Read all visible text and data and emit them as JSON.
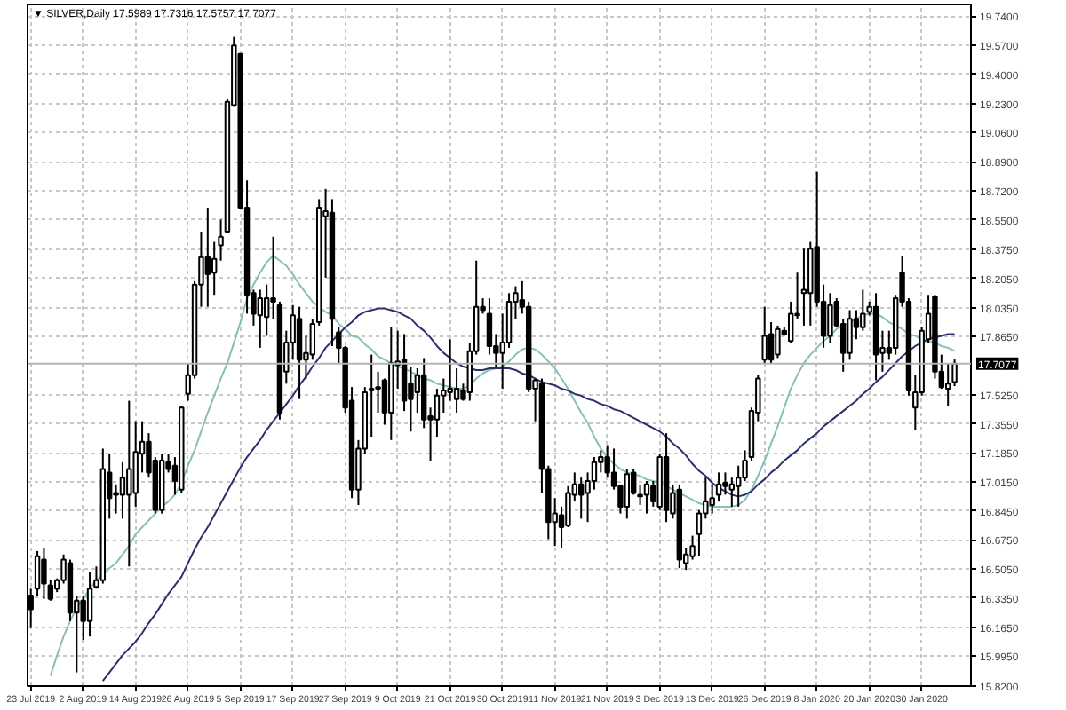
{
  "chart_data": {
    "type": "candlestick",
    "title": "▼ SILVER,Daily 17.5989 17.7316 17.5757 17.7077",
    "categories": [
      "23 Jul 2019",
      null,
      null,
      null,
      null,
      null,
      null,
      null,
      "2 Aug 2019",
      null,
      null,
      null,
      null,
      null,
      null,
      null,
      "14 Aug 2019",
      null,
      null,
      null,
      null,
      null,
      null,
      null,
      "26 Aug 2019",
      null,
      null,
      null,
      null,
      null,
      null,
      null,
      "5 Sep 2019",
      null,
      null,
      null,
      null,
      null,
      null,
      null,
      "17 Sep 2019",
      null,
      null,
      null,
      null,
      null,
      null,
      null,
      "27 Sep 2019",
      null,
      null,
      null,
      null,
      null,
      null,
      null,
      "9 Oct 2019",
      null,
      null,
      null,
      null,
      null,
      null,
      null,
      "21 Oct 2019",
      null,
      null,
      null,
      null,
      null,
      null,
      null,
      "30 Oct 2019",
      null,
      null,
      null,
      null,
      null,
      null,
      null,
      "11 Nov 2019",
      null,
      null,
      null,
      null,
      null,
      null,
      null,
      "21 Nov 2019",
      null,
      null,
      null,
      null,
      null,
      null,
      null,
      "3 Dec 2019",
      null,
      null,
      null,
      null,
      null,
      null,
      null,
      "13 Dec 2019",
      null,
      null,
      null,
      null,
      null,
      null,
      null,
      "26 Dec 2019",
      null,
      null,
      null,
      null,
      null,
      null,
      null,
      "8 Jan 2020",
      null,
      null,
      null,
      null,
      null,
      null,
      null,
      "20 Jan 2020",
      null,
      null,
      null,
      null,
      null,
      null,
      null,
      "30 Jan 2020",
      null,
      null,
      null,
      null,
      null
    ],
    "ohlc": [
      [
        16.35,
        16.39,
        16.16,
        16.27
      ],
      [
        16.39,
        16.61,
        16.35,
        16.58
      ],
      [
        16.56,
        16.63,
        16.33,
        16.42
      ],
      [
        16.41,
        16.44,
        16.32,
        16.33
      ],
      [
        16.39,
        16.45,
        16.37,
        16.44
      ],
      [
        16.44,
        16.59,
        16.42,
        16.56
      ],
      [
        16.54,
        16.56,
        16.2,
        16.25
      ],
      [
        16.25,
        16.35,
        15.9,
        16.32
      ],
      [
        16.32,
        16.35,
        16.09,
        16.2
      ],
      [
        16.2,
        16.49,
        16.11,
        16.39
      ],
      [
        16.4,
        16.52,
        16.39,
        16.44
      ],
      [
        16.44,
        17.21,
        16.42,
        17.09
      ],
      [
        17.07,
        17.18,
        16.8,
        16.92
      ],
      [
        16.95,
        17.0,
        16.83,
        16.94
      ],
      [
        16.94,
        17.13,
        16.8,
        17.04
      ],
      [
        16.94,
        17.49,
        16.52,
        17.09
      ],
      [
        16.95,
        17.37,
        16.87,
        17.19
      ],
      [
        17.18,
        17.37,
        17.07,
        17.25
      ],
      [
        17.25,
        17.3,
        17.04,
        17.07
      ],
      [
        17.14,
        17.16,
        16.83,
        16.85
      ],
      [
        16.85,
        17.18,
        16.83,
        17.14
      ],
      [
        17.13,
        17.18,
        17.07,
        17.09
      ],
      [
        17.11,
        17.16,
        16.94,
        17.02
      ],
      [
        16.97,
        17.46,
        16.95,
        17.45
      ],
      [
        17.53,
        17.71,
        17.49,
        17.64
      ],
      [
        17.64,
        18.19,
        17.62,
        18.17
      ],
      [
        18.17,
        18.48,
        18.04,
        18.33
      ],
      [
        18.33,
        18.62,
        18.04,
        18.23
      ],
      [
        18.24,
        18.42,
        18.11,
        18.32
      ],
      [
        18.4,
        18.55,
        18.31,
        18.45
      ],
      [
        18.48,
        19.26,
        18.47,
        19.24
      ],
      [
        19.22,
        19.62,
        19.21,
        19.57
      ],
      [
        19.52,
        19.52,
        18.62,
        18.62
      ],
      [
        18.62,
        18.78,
        18.0,
        18.11
      ],
      [
        18.12,
        18.14,
        17.93,
        18.0
      ],
      [
        17.99,
        18.14,
        17.8,
        18.09
      ],
      [
        17.98,
        18.17,
        17.87,
        18.09
      ],
      [
        18.09,
        18.45,
        17.97,
        18.07
      ],
      [
        18.05,
        18.07,
        17.38,
        17.42
      ],
      [
        17.66,
        17.9,
        17.59,
        17.83
      ],
      [
        17.83,
        18.05,
        17.73,
        17.99
      ],
      [
        17.97,
        18.04,
        17.5,
        17.73
      ],
      [
        17.73,
        17.87,
        17.62,
        17.77
      ],
      [
        17.76,
        17.97,
        17.73,
        17.94
      ],
      [
        17.95,
        18.67,
        17.93,
        18.62
      ],
      [
        18.57,
        18.73,
        18.21,
        18.6
      ],
      [
        18.59,
        18.67,
        17.81,
        17.97
      ],
      [
        17.89,
        17.92,
        17.71,
        17.8
      ],
      [
        17.8,
        17.81,
        17.42,
        17.45
      ],
      [
        17.49,
        17.57,
        16.92,
        16.97
      ],
      [
        16.97,
        17.26,
        16.88,
        17.21
      ],
      [
        17.21,
        17.57,
        17.18,
        17.54
      ],
      [
        17.55,
        17.76,
        17.28,
        17.56
      ],
      [
        17.56,
        17.66,
        17.42,
        17.57
      ],
      [
        17.61,
        17.62,
        17.35,
        17.42
      ],
      [
        17.42,
        17.92,
        17.26,
        17.71
      ],
      [
        17.7,
        17.9,
        17.56,
        17.72
      ],
      [
        17.73,
        17.88,
        17.43,
        17.49
      ],
      [
        17.59,
        17.69,
        17.31,
        17.5
      ],
      [
        17.54,
        17.68,
        17.42,
        17.64
      ],
      [
        17.64,
        17.74,
        17.33,
        17.38
      ],
      [
        17.4,
        17.45,
        17.14,
        17.38
      ],
      [
        17.38,
        17.56,
        17.28,
        17.52
      ],
      [
        17.52,
        17.62,
        17.42,
        17.55
      ],
      [
        17.54,
        17.85,
        17.49,
        17.56
      ],
      [
        17.5,
        17.68,
        17.42,
        17.56
      ],
      [
        17.55,
        17.59,
        17.49,
        17.5
      ],
      [
        17.54,
        17.83,
        17.49,
        17.78
      ],
      [
        17.78,
        18.31,
        17.76,
        18.04
      ],
      [
        18.04,
        18.09,
        18.0,
        18.02
      ],
      [
        18.0,
        18.09,
        17.76,
        17.81
      ],
      [
        17.81,
        17.88,
        17.69,
        17.77
      ],
      [
        17.77,
        18.0,
        17.56,
        17.83
      ],
      [
        17.83,
        18.12,
        17.8,
        18.07
      ],
      [
        18.07,
        18.16,
        17.97,
        18.12
      ],
      [
        18.08,
        18.19,
        18.0,
        18.04
      ],
      [
        18.04,
        18.07,
        17.54,
        17.56
      ],
      [
        17.56,
        17.62,
        17.37,
        17.61
      ],
      [
        17.59,
        17.62,
        16.95,
        17.09
      ],
      [
        17.09,
        17.11,
        16.68,
        16.78
      ],
      [
        16.78,
        16.92,
        16.64,
        16.83
      ],
      [
        16.82,
        16.87,
        16.63,
        16.75
      ],
      [
        16.76,
        16.99,
        16.75,
        16.95
      ],
      [
        16.94,
        17.07,
        16.9,
        17.0
      ],
      [
        17.0,
        17.04,
        16.8,
        16.94
      ],
      [
        16.95,
        17.07,
        16.78,
        17.02
      ],
      [
        17.02,
        17.16,
        16.97,
        17.13
      ],
      [
        17.13,
        17.2,
        17.07,
        17.16
      ],
      [
        17.16,
        17.23,
        17.04,
        17.07
      ],
      [
        17.07,
        17.21,
        16.97,
        16.99
      ],
      [
        16.99,
        17.0,
        16.83,
        16.87
      ],
      [
        16.87,
        17.09,
        16.8,
        17.06
      ],
      [
        17.07,
        17.09,
        16.94,
        16.95
      ],
      [
        16.94,
        17.0,
        16.88,
        16.93
      ],
      [
        16.94,
        17.02,
        16.83,
        17.0
      ],
      [
        16.99,
        17.02,
        16.87,
        16.9
      ],
      [
        16.87,
        17.18,
        16.85,
        17.16
      ],
      [
        17.16,
        17.3,
        16.78,
        16.85
      ],
      [
        16.83,
        17.0,
        16.8,
        16.95
      ],
      [
        16.97,
        17.0,
        16.51,
        16.56
      ],
      [
        16.54,
        16.63,
        16.5,
        16.59
      ],
      [
        16.58,
        16.7,
        16.56,
        16.64
      ],
      [
        16.71,
        16.85,
        16.58,
        16.83
      ],
      [
        16.83,
        17.04,
        16.8,
        16.9
      ],
      [
        16.88,
        17.0,
        16.83,
        16.92
      ],
      [
        16.94,
        17.07,
        16.9,
        17.0
      ],
      [
        17.01,
        17.07,
        16.94,
        16.99
      ],
      [
        16.97,
        17.04,
        16.87,
        17.0
      ],
      [
        16.99,
        17.11,
        16.87,
        17.04
      ],
      [
        17.04,
        17.2,
        17.02,
        17.14
      ],
      [
        17.16,
        17.45,
        17.14,
        17.43
      ],
      [
        17.42,
        17.64,
        17.37,
        17.62
      ],
      [
        17.73,
        18.04,
        17.71,
        17.87
      ],
      [
        17.88,
        17.95,
        17.71,
        17.73
      ],
      [
        17.76,
        17.93,
        17.74,
        17.91
      ],
      [
        17.9,
        17.92,
        17.87,
        17.88
      ],
      [
        17.84,
        18.07,
        17.83,
        18.0
      ],
      [
        17.99,
        18.24,
        17.97,
        18.0
      ],
      [
        18.12,
        18.38,
        17.93,
        18.14
      ],
      [
        18.12,
        18.42,
        17.93,
        18.38
      ],
      [
        18.39,
        18.83,
        18.04,
        18.07
      ],
      [
        18.07,
        18.17,
        17.8,
        17.87
      ],
      [
        17.87,
        18.12,
        17.83,
        18.05
      ],
      [
        18.07,
        18.09,
        17.92,
        17.93
      ],
      [
        17.94,
        17.97,
        17.66,
        17.77
      ],
      [
        17.77,
        18.02,
        17.73,
        17.97
      ],
      [
        17.97,
        18.02,
        17.85,
        17.92
      ],
      [
        17.92,
        18.14,
        17.9,
        18.0
      ],
      [
        18.01,
        18.07,
        17.99,
        18.04
      ],
      [
        18.04,
        18.12,
        17.61,
        17.76
      ],
      [
        17.77,
        17.9,
        17.66,
        17.8
      ],
      [
        17.8,
        17.9,
        17.73,
        17.77
      ],
      [
        17.8,
        18.11,
        17.76,
        18.09
      ],
      [
        18.24,
        18.34,
        18.04,
        18.07
      ],
      [
        18.07,
        18.09,
        17.52,
        17.55
      ],
      [
        17.45,
        17.64,
        17.32,
        17.54
      ],
      [
        17.54,
        17.92,
        17.52,
        17.9
      ],
      [
        17.85,
        18.11,
        17.83,
        18.0
      ],
      [
        18.1,
        18.11,
        17.62,
        17.66
      ],
      [
        17.66,
        17.76,
        17.56,
        17.57
      ],
      [
        17.56,
        17.71,
        17.46,
        17.59
      ],
      [
        17.5989,
        17.7316,
        17.5757,
        17.7077
      ]
    ],
    "color": "#000000",
    "series": [
      {
        "type": "line",
        "color": "#86c0b4",
        "values": [
          null,
          null,
          null,
          15.88,
          16.0,
          16.11,
          16.2,
          16.28,
          16.33,
          16.39,
          16.44,
          16.47,
          16.51,
          16.54,
          16.59,
          16.64,
          16.71,
          16.75,
          16.79,
          16.83,
          16.87,
          16.9,
          16.94,
          17.01,
          17.11,
          17.2,
          17.31,
          17.42,
          17.52,
          17.62,
          17.71,
          17.83,
          17.95,
          18.09,
          18.17,
          18.24,
          18.3,
          18.34,
          18.31,
          18.28,
          18.23,
          18.17,
          18.12,
          18.07,
          18.04,
          18.01,
          17.99,
          17.94,
          17.91,
          17.87,
          17.86,
          17.82,
          17.79,
          17.75,
          17.73,
          17.71,
          17.69,
          17.68,
          17.66,
          17.64,
          17.62,
          17.61,
          17.59,
          17.58,
          17.57,
          17.56,
          17.56,
          17.58,
          17.62,
          17.65,
          17.67,
          17.68,
          17.69,
          17.72,
          17.76,
          17.79,
          17.8,
          17.79,
          17.76,
          17.72,
          17.68,
          17.62,
          17.56,
          17.49,
          17.42,
          17.36,
          17.28,
          17.21,
          17.16,
          17.12,
          17.09,
          17.07,
          17.06,
          17.05,
          17.03,
          17.02,
          17.01,
          16.99,
          16.97,
          16.95,
          16.93,
          16.91,
          16.89,
          16.88,
          16.87,
          16.87,
          16.87,
          16.87,
          16.88,
          16.91,
          16.97,
          17.05,
          17.14,
          17.24,
          17.34,
          17.45,
          17.56,
          17.64,
          17.71,
          17.76,
          17.8,
          17.84,
          17.87,
          17.91,
          17.93,
          17.95,
          17.97,
          17.99,
          18.0,
          18.0,
          17.98,
          17.95,
          17.93,
          17.91,
          17.88,
          17.87,
          17.85,
          17.84,
          17.83,
          17.81,
          17.8,
          17.78
        ]
      },
      {
        "type": "line",
        "color": "#2b2f6b",
        "values": [
          null,
          null,
          null,
          null,
          null,
          null,
          null,
          null,
          null,
          null,
          null,
          15.85,
          15.9,
          15.95,
          16.0,
          16.04,
          16.08,
          16.13,
          16.19,
          16.24,
          16.3,
          16.36,
          16.41,
          16.46,
          16.54,
          16.62,
          16.69,
          16.75,
          16.82,
          16.89,
          16.96,
          17.03,
          17.1,
          17.16,
          17.21,
          17.26,
          17.32,
          17.37,
          17.42,
          17.47,
          17.52,
          17.58,
          17.63,
          17.69,
          17.74,
          17.8,
          17.84,
          17.88,
          17.92,
          17.95,
          17.99,
          18.01,
          18.02,
          18.03,
          18.03,
          18.02,
          18.01,
          17.99,
          17.97,
          17.93,
          17.9,
          17.86,
          17.81,
          17.77,
          17.74,
          17.71,
          17.69,
          17.68,
          17.67,
          17.67,
          17.68,
          17.68,
          17.68,
          17.68,
          17.67,
          17.65,
          17.64,
          17.62,
          17.6,
          17.59,
          17.58,
          17.56,
          17.55,
          17.53,
          17.52,
          17.5,
          17.49,
          17.47,
          17.46,
          17.44,
          17.43,
          17.41,
          17.39,
          17.37,
          17.35,
          17.33,
          17.31,
          17.28,
          17.24,
          17.21,
          17.17,
          17.12,
          17.08,
          17.05,
          17.01,
          16.98,
          16.96,
          16.94,
          16.93,
          16.94,
          16.96,
          17.0,
          17.03,
          17.07,
          17.1,
          17.14,
          17.17,
          17.2,
          17.24,
          17.27,
          17.3,
          17.34,
          17.37,
          17.4,
          17.43,
          17.46,
          17.49,
          17.53,
          17.56,
          17.6,
          17.63,
          17.67,
          17.71,
          17.75,
          17.78,
          17.81,
          17.83,
          17.85,
          17.86,
          17.87,
          17.88,
          17.88
        ]
      }
    ],
    "ylim": [
      15.82,
      19.81
    ],
    "yticks": [
      {
        "value": 19.74,
        "label": "19.7400"
      },
      {
        "value": 19.57,
        "label": "19.5700"
      },
      {
        "value": 19.4,
        "label": "19.4000"
      },
      {
        "value": 19.23,
        "label": "19.2300"
      },
      {
        "value": 19.06,
        "label": "19.0600"
      },
      {
        "value": 18.89,
        "label": "18.8900"
      },
      {
        "value": 18.72,
        "label": "18.7200"
      },
      {
        "value": 18.55,
        "label": "18.5500"
      },
      {
        "value": 18.375,
        "label": "18.3750"
      },
      {
        "value": 18.205,
        "label": "18.2050"
      },
      {
        "value": 18.035,
        "label": "18.0350"
      },
      {
        "value": 17.865,
        "label": "17.8650"
      },
      {
        "value": 17.525,
        "label": "17.5250"
      },
      {
        "value": 17.355,
        "label": "17.3550"
      },
      {
        "value": 17.185,
        "label": "17.1850"
      },
      {
        "value": 17.015,
        "label": "17.0150"
      },
      {
        "value": 16.845,
        "label": "16.8450"
      },
      {
        "value": 16.675,
        "label": "16.6750"
      },
      {
        "value": 16.505,
        "label": "16.5050"
      },
      {
        "value": 16.335,
        "label": "16.3350"
      },
      {
        "value": 16.165,
        "label": "16.1650"
      },
      {
        "value": 15.995,
        "label": "15.9950"
      },
      {
        "value": 15.82,
        "label": "15.8200"
      }
    ],
    "ref_lines": [
      {
        "axis": "y",
        "value": 17.7077,
        "label": "17.7077",
        "color": "#b4b4b4"
      }
    ],
    "grid": true
  }
}
